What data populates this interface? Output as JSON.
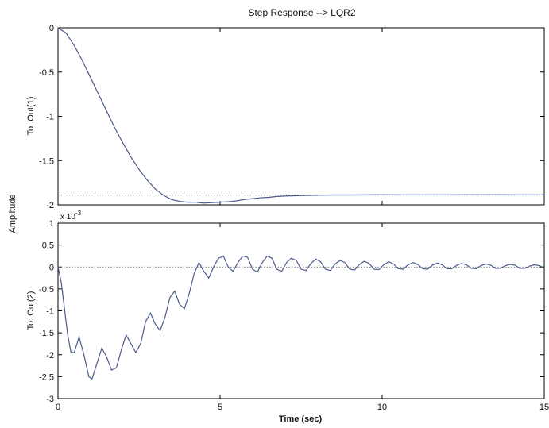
{
  "chart_data": {
    "type": "line",
    "title": "Step Response --> LQR2",
    "xlabel": "Time (sec)",
    "ylabel": "Amplitude",
    "xlim": [
      0,
      15
    ],
    "x_ticks": [
      "0",
      "5",
      "10",
      "15"
    ],
    "grid": false,
    "line_color": "#4a5a8c",
    "reference_color": "#555555",
    "subplots": [
      {
        "ylabel": "To: Out(1)",
        "ylim": [
          -2,
          0
        ],
        "y_ticks": [
          "0",
          "-0.5",
          "-1",
          "-1.5",
          "-2"
        ],
        "y_tick_values": [
          0,
          -0.5,
          -1,
          -1.5,
          -2
        ],
        "reference_line": -1.89,
        "series": [
          {
            "x": [
              0,
              0.25,
              0.5,
              0.75,
              1.0,
              1.25,
              1.5,
              1.75,
              2.0,
              2.25,
              2.5,
              2.75,
              3.0,
              3.25,
              3.5,
              3.75,
              4.0,
              4.25,
              4.5,
              4.75,
              5.0,
              5.25,
              5.5,
              5.75,
              6.0,
              6.25,
              6.5,
              6.75,
              7.0,
              7.5,
              8.0,
              8.5,
              9.0,
              9.5,
              10.0,
              10.5,
              11.0,
              12.0,
              13.0,
              14.0,
              15.0
            ],
            "y": [
              0,
              -0.06,
              -0.2,
              -0.37,
              -0.56,
              -0.75,
              -0.94,
              -1.13,
              -1.3,
              -1.46,
              -1.6,
              -1.72,
              -1.82,
              -1.89,
              -1.94,
              -1.96,
              -1.97,
              -1.97,
              -1.98,
              -1.975,
              -1.97,
              -1.965,
              -1.955,
              -1.94,
              -1.93,
              -1.92,
              -1.915,
              -1.905,
              -1.9,
              -1.895,
              -1.89,
              -1.888,
              -1.888,
              -1.887,
              -1.885,
              -1.886,
              -1.886,
              -1.886,
              -1.885,
              -1.886,
              -1.886
            ]
          }
        ]
      },
      {
        "ylabel": "To: Out(2)",
        "ylim": [
          -3,
          1
        ],
        "y_ticks": [
          "1",
          "0.5",
          "0",
          "-0.5",
          "-1",
          "-1.5",
          "-2",
          "-2.5",
          "-3"
        ],
        "y_tick_values": [
          1,
          0.5,
          0,
          -0.5,
          -1,
          -1.5,
          -2,
          -2.5,
          -3
        ],
        "exponent_label": "x 10",
        "exponent_power": "-3",
        "reference_line": 0,
        "series": [
          {
            "x": [
              0,
              0.1,
              0.2,
              0.3,
              0.4,
              0.5,
              0.65,
              0.8,
              0.95,
              1.05,
              1.2,
              1.35,
              1.5,
              1.65,
              1.8,
              1.95,
              2.1,
              2.25,
              2.4,
              2.55,
              2.7,
              2.85,
              3.0,
              3.15,
              3.3,
              3.45,
              3.6,
              3.75,
              3.9,
              4.05,
              4.2,
              4.35,
              4.5,
              4.65,
              4.8,
              4.95,
              5.1,
              5.25,
              5.4,
              5.55,
              5.7,
              5.85,
              6.0,
              6.15,
              6.3,
              6.45,
              6.6,
              6.75,
              6.9,
              7.05,
              7.2,
              7.35,
              7.5,
              7.65,
              7.8,
              7.95,
              8.1,
              8.25,
              8.4,
              8.55,
              8.7,
              8.85,
              9.0,
              9.15,
              9.3,
              9.45,
              9.6,
              9.75,
              9.9,
              10.05,
              10.2,
              10.35,
              10.5,
              10.65,
              10.8,
              10.95,
              11.1,
              11.25,
              11.4,
              11.55,
              11.7,
              11.85,
              12.0,
              12.15,
              12.3,
              12.45,
              12.6,
              12.75,
              12.9,
              13.05,
              13.2,
              13.35,
              13.5,
              13.65,
              13.8,
              13.95,
              14.1,
              14.25,
              14.4,
              14.55,
              14.7,
              14.85,
              15.0
            ],
            "y": [
              0,
              -0.35,
              -0.95,
              -1.55,
              -1.95,
              -1.95,
              -1.6,
              -2.0,
              -2.5,
              -2.55,
              -2.2,
              -1.85,
              -2.05,
              -2.35,
              -2.3,
              -1.9,
              -1.55,
              -1.75,
              -1.95,
              -1.75,
              -1.25,
              -1.05,
              -1.3,
              -1.45,
              -1.15,
              -0.7,
              -0.55,
              -0.85,
              -0.95,
              -0.6,
              -0.15,
              0.1,
              -0.1,
              -0.25,
              0.0,
              0.2,
              0.25,
              0.0,
              -0.1,
              0.1,
              0.25,
              0.22,
              -0.05,
              -0.12,
              0.1,
              0.25,
              0.2,
              -0.05,
              -0.1,
              0.1,
              0.2,
              0.15,
              -0.05,
              -0.08,
              0.08,
              0.18,
              0.12,
              -0.05,
              -0.08,
              0.07,
              0.15,
              0.1,
              -0.05,
              -0.07,
              0.06,
              0.13,
              0.08,
              -0.05,
              -0.06,
              0.05,
              0.12,
              0.07,
              -0.04,
              -0.05,
              0.05,
              0.1,
              0.06,
              -0.04,
              -0.05,
              0.04,
              0.09,
              0.05,
              -0.04,
              -0.04,
              0.04,
              0.08,
              0.05,
              -0.03,
              -0.04,
              0.03,
              0.07,
              0.04,
              -0.03,
              -0.03,
              0.03,
              0.06,
              0.04,
              -0.03,
              -0.03,
              0.02,
              0.05,
              0.03,
              -0.02
            ]
          }
        ]
      }
    ]
  }
}
